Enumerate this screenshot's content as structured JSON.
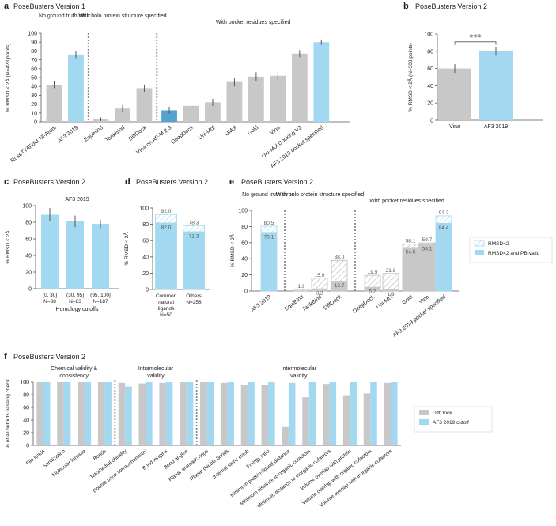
{
  "colors": {
    "gray": "#c8c8c8",
    "blue": "#a2d8f0",
    "darkblue": "#55a2cf",
    "axis": "#555555",
    "text": "#222222",
    "hatch": "#bbbbbb"
  },
  "chart_data": [
    {
      "id": "a",
      "type": "bar",
      "panel_letter": "a",
      "title": "PoseBusters Version 1",
      "ylabel": "% RMSD < 2Å (N=428 points)",
      "ylim": [
        0,
        100
      ],
      "yticks": [
        0,
        10,
        20,
        30,
        40,
        50,
        60,
        70,
        80,
        90,
        100
      ],
      "categories": [
        "RoseTTAFold All-Atom",
        "AF3 2019",
        "EquiBind",
        "TankBind",
        "DiffDock",
        "Vina on AF-M 2.3",
        "DeepDock",
        "Uni-Mol",
        "UMol",
        "Gold",
        "Vina",
        "Uni-Mol Docking V2",
        "AF3 2019 pocket specified"
      ],
      "values": [
        42,
        76,
        3,
        15,
        38,
        13,
        18,
        22,
        45,
        51,
        52,
        77,
        90
      ],
      "errors": [
        4,
        4,
        2,
        4,
        4,
        4,
        3,
        4,
        5,
        5,
        5,
        4,
        3
      ],
      "colors": [
        "gray",
        "blue",
        "gray",
        "gray",
        "gray",
        "darkblue",
        "gray",
        "gray",
        "gray",
        "gray",
        "gray",
        "gray",
        "blue"
      ],
      "groups": [
        "No ground truth struc",
        "With holo protein structure specified",
        "With pocket residues specified"
      ]
    },
    {
      "id": "b",
      "type": "bar",
      "panel_letter": "b",
      "title": "PoseBusters Version 2",
      "ylabel": "% RMSD < 2Å (N=308 points)",
      "ylim": [
        0,
        100
      ],
      "yticks": [
        0,
        20,
        40,
        60,
        80,
        100
      ],
      "categories": [
        "Vina",
        "AF3 2019"
      ],
      "values": [
        60,
        80
      ],
      "errors": [
        5,
        5
      ],
      "colors": [
        "gray",
        "blue"
      ],
      "annotation": "***"
    },
    {
      "id": "c",
      "type": "bar",
      "panel_letter": "c",
      "title": "PoseBusters Version 2",
      "subtitle": "AF3 2019",
      "ylabel": "% RMSD < 2Å",
      "xlabel": "Homology cutoffs",
      "ylim": [
        0,
        100
      ],
      "yticks": [
        0,
        20,
        40,
        60,
        80,
        100
      ],
      "categories": [
        "(0, 30]",
        "(30, 95]",
        "(95, 100]"
      ],
      "category_n": [
        "N=38",
        "N=83",
        "N=187"
      ],
      "values": [
        89,
        81,
        78
      ],
      "errors": [
        8,
        7,
        5
      ],
      "colors": [
        "blue",
        "blue",
        "blue"
      ]
    },
    {
      "id": "d",
      "type": "bar",
      "panel_letter": "d",
      "title": "PoseBusters Version 2",
      "ylabel": "% RMSD < 2Å",
      "ylim": [
        0,
        100
      ],
      "yticks": [
        0,
        20,
        40,
        60,
        80,
        100
      ],
      "categories": [
        "Common natural ligands",
        "Others"
      ],
      "category_n": [
        "N=50",
        "N=258"
      ],
      "series": [
        {
          "name": "RMSD<2",
          "values": [
            92.0,
            78.3
          ]
        },
        {
          "name": "RMSD<2 and PB-valid",
          "values": [
            82.0,
            71.3
          ]
        }
      ],
      "labels_total": [
        "92.0",
        "78.3"
      ],
      "labels_valid": [
        "82.0",
        "71.3"
      ]
    },
    {
      "id": "e",
      "type": "bar",
      "panel_letter": "e",
      "title": "PoseBusters Version 2",
      "ylabel": "% RMSD < 2Å",
      "ylim": [
        0,
        100
      ],
      "yticks": [
        0,
        20,
        40,
        60,
        80,
        100
      ],
      "categories": [
        "AF3 2019",
        "EquiBind",
        "TankBind",
        "DiffDock",
        "DeepDock",
        "Uni-Mol",
        "Gold",
        "Vina",
        "AF3 2019 pocket specified"
      ],
      "series": [
        {
          "name": "RMSD<2",
          "values": [
            80.5,
            1.9,
            15.9,
            38.0,
            19.5,
            21.8,
            58.1,
            59.7,
            93.2
          ]
        },
        {
          "name": "RMSD<2 and PB-valid",
          "values": [
            73.1,
            0,
            3.2,
            12.7,
            5.2,
            1.9,
            54.5,
            58.1,
            84.4
          ]
        }
      ],
      "labels_total": [
        "80.5",
        "1.9",
        "15.9",
        "38.0",
        "19.5",
        "21.8",
        "58.1",
        "59.7",
        "93.2"
      ],
      "labels_valid": [
        "73.1",
        "",
        "3.2",
        "12.7",
        "5.2",
        "1.9",
        "54.5",
        "58.1",
        "84.4"
      ],
      "bar_colors": [
        "blue",
        "gray",
        "gray",
        "gray",
        "gray",
        "gray",
        "gray",
        "gray",
        "blue"
      ],
      "groups": [
        "No ground truth struc",
        "With holo protein structure specified",
        "With pocket residues specified"
      ],
      "legend": [
        "RMSD<2",
        "RMSD<2 and PB-valid"
      ]
    },
    {
      "id": "f",
      "type": "bar",
      "panel_letter": "f",
      "title": "PoseBusters Version 2",
      "ylabel": "% of all outputs passing check",
      "ylim": [
        0,
        100
      ],
      "yticks": [
        0,
        20,
        40,
        60,
        80,
        100
      ],
      "categories": [
        "File loads",
        "Sanitization",
        "Molecular formula",
        "Bonds",
        "Tetrahedral chirality",
        "Double bond stereochemistry",
        "Bond lengths",
        "Bond angles",
        "Planar aromatic rings",
        "Planar double bonds",
        "Internal steric clash",
        "Energy ratio",
        "Minimum protein-ligand distance",
        "Minimum distance to organic cofactors",
        "Minimum distance to inorganic cofactors",
        "Volume overlap with protein",
        "Volume overlap with organic cofactors",
        "Volume overlap with inorganic cofactors"
      ],
      "series": [
        {
          "name": "DiffDock",
          "values": [
            100,
            100,
            100,
            100,
            99,
            98,
            99,
            100,
            100,
            99,
            95,
            95,
            29,
            76,
            96,
            78,
            82,
            99
          ]
        },
        {
          "name": "AF3 2019 cutoff",
          "values": [
            100,
            100,
            100,
            100,
            93,
            100,
            100,
            100,
            100,
            100,
            100,
            100,
            99,
            100,
            100,
            100,
            100,
            100
          ]
        }
      ],
      "groups": [
        "Chemical validity & consistency",
        "Intramolecular validity",
        "Intermolecular validity"
      ],
      "legend": [
        "DiffDock",
        "AF3 2019 cutoff"
      ]
    }
  ]
}
